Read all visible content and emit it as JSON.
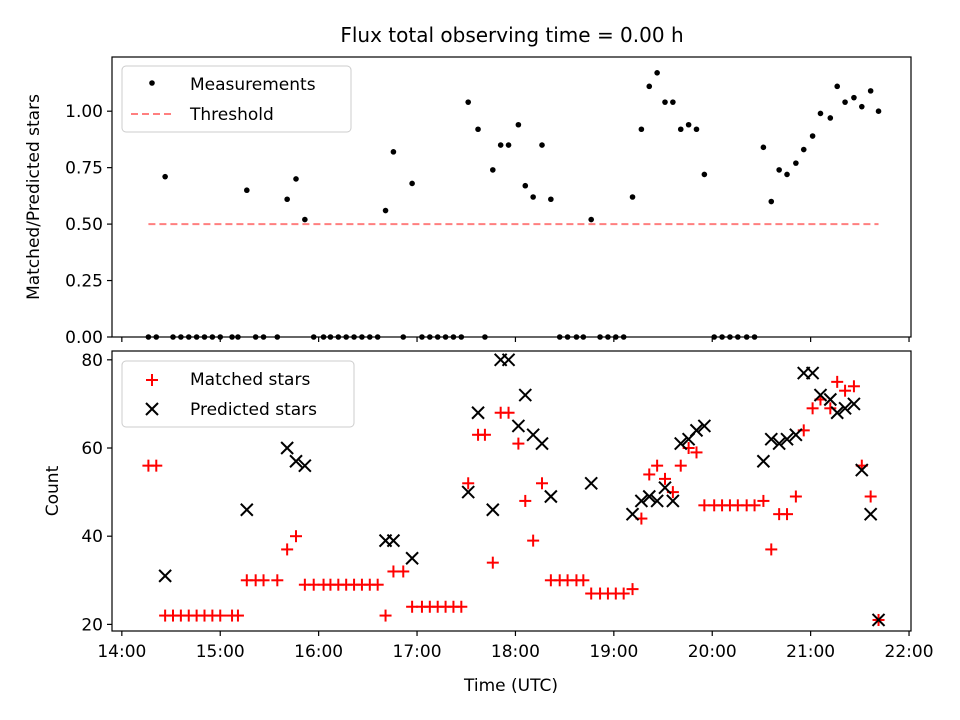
{
  "title": "Flux total observing time = 0.00 h",
  "colors": {
    "threshold": "#ff7f7f",
    "matched": "#ff0000",
    "predicted": "#000000",
    "measurement": "#000000"
  },
  "chart_data": [
    {
      "type": "scatter",
      "ylabel": "Matched/Predicted stars",
      "xlabel": "",
      "xlim": [
        13.9,
        22.02
      ],
      "ylim": [
        0,
        1.24
      ],
      "yticks": [
        "0.00",
        "0.25",
        "0.50",
        "0.75",
        "1.00"
      ],
      "legend": {
        "placement": "top-left",
        "entries": [
          "Measurements",
          "Threshold"
        ]
      },
      "series": [
        {
          "name": "Measurements",
          "x": [
            14.27,
            14.35,
            14.44,
            14.52,
            14.6,
            14.68,
            14.76,
            14.84,
            14.92,
            15.0,
            15.12,
            15.18,
            15.27,
            15.36,
            15.44,
            15.58,
            15.68,
            15.77,
            15.86,
            15.95,
            16.05,
            16.12,
            16.2,
            16.28,
            16.36,
            16.44,
            16.52,
            16.6,
            16.68,
            16.76,
            16.86,
            16.95,
            17.05,
            17.13,
            17.21,
            17.29,
            17.37,
            17.45,
            17.52,
            17.62,
            17.69,
            17.77,
            17.85,
            17.93,
            18.03,
            18.1,
            18.18,
            18.27,
            18.36,
            18.45,
            18.53,
            18.62,
            18.69,
            18.77,
            18.86,
            18.94,
            19.02,
            19.1,
            19.19,
            19.28,
            19.36,
            19.44,
            19.52,
            19.6,
            19.68,
            19.76,
            19.84,
            19.92,
            20.02,
            20.1,
            20.18,
            20.26,
            20.35,
            20.43,
            20.52,
            20.6,
            20.68,
            20.76,
            20.85,
            20.93,
            21.02,
            21.1,
            21.2,
            21.27,
            21.35,
            21.44,
            21.52,
            21.61,
            21.69
          ],
          "y": [
            0.0,
            0.0,
            0.71,
            0.0,
            0.0,
            0.0,
            0.0,
            0.0,
            0.0,
            0.0,
            0.0,
            0.0,
            0.65,
            0.0,
            0.0,
            0.0,
            0.61,
            0.7,
            0.52,
            0.0,
            0.0,
            0.0,
            0.0,
            0.0,
            0.0,
            0.0,
            0.0,
            0.0,
            0.56,
            0.82,
            0.0,
            0.68,
            0.0,
            0.0,
            0.0,
            0.0,
            0.0,
            0.0,
            1.04,
            0.92,
            0.0,
            0.74,
            0.85,
            0.85,
            0.94,
            0.67,
            0.62,
            0.85,
            0.61,
            0.0,
            0.0,
            0.0,
            0.0,
            0.52,
            0.0,
            0.0,
            0.0,
            0.0,
            0.62,
            0.92,
            1.11,
            1.17,
            1.04,
            1.04,
            0.92,
            0.94,
            0.92,
            0.72,
            0.0,
            0.0,
            0.0,
            0.0,
            0.0,
            0.0,
            0.84,
            0.6,
            0.74,
            0.72,
            0.77,
            0.83,
            0.89,
            0.99,
            0.97,
            1.11,
            1.04,
            1.06,
            1.02,
            1.09,
            1.0
          ]
        },
        {
          "name": "Threshold",
          "x": [
            14.27,
            21.69
          ],
          "y": [
            0.5,
            0.5
          ]
        }
      ]
    },
    {
      "type": "scatter",
      "ylabel": "Count",
      "xlabel": "Time (UTC)",
      "xlim": [
        13.9,
        22.02
      ],
      "ylim": [
        18.5,
        82
      ],
      "xticks": [
        "14:00",
        "15:00",
        "16:00",
        "17:00",
        "18:00",
        "19:00",
        "20:00",
        "21:00",
        "22:00"
      ],
      "yticks": [
        "20",
        "40",
        "60",
        "80"
      ],
      "legend": {
        "placement": "top-left",
        "entries": [
          "Matched stars",
          "Predicted stars"
        ]
      },
      "series": [
        {
          "name": "Matched stars",
          "x": [
            14.27,
            14.35,
            14.44,
            14.52,
            14.6,
            14.68,
            14.76,
            14.84,
            14.92,
            15.0,
            15.12,
            15.18,
            15.27,
            15.36,
            15.44,
            15.58,
            15.68,
            15.77,
            15.86,
            15.95,
            16.05,
            16.12,
            16.2,
            16.28,
            16.36,
            16.44,
            16.52,
            16.6,
            16.68,
            16.76,
            16.86,
            16.95,
            17.05,
            17.13,
            17.21,
            17.29,
            17.37,
            17.45,
            17.52,
            17.62,
            17.69,
            17.77,
            17.85,
            17.93,
            18.03,
            18.1,
            18.18,
            18.27,
            18.36,
            18.45,
            18.53,
            18.62,
            18.69,
            18.77,
            18.86,
            18.94,
            19.02,
            19.1,
            19.19,
            19.28,
            19.36,
            19.44,
            19.52,
            19.6,
            19.68,
            19.76,
            19.84,
            19.92,
            20.02,
            20.1,
            20.18,
            20.26,
            20.35,
            20.43,
            20.52,
            20.6,
            20.68,
            20.76,
            20.85,
            20.93,
            21.02,
            21.1,
            21.2,
            21.27,
            21.35,
            21.44,
            21.52,
            21.61,
            21.69
          ],
          "y": [
            56,
            56,
            22,
            22,
            22,
            22,
            22,
            22,
            22,
            22,
            22,
            22,
            30,
            30,
            30,
            30,
            37,
            40,
            29,
            29,
            29,
            29,
            29,
            29,
            29,
            29,
            29,
            29,
            22,
            32,
            32,
            24,
            24,
            24,
            24,
            24,
            24,
            24,
            52,
            63,
            63,
            34,
            68,
            68,
            61,
            48,
            39,
            52,
            30,
            30,
            30,
            30,
            30,
            27,
            27,
            27,
            27,
            27,
            28,
            44,
            54,
            56,
            53,
            50,
            56,
            60,
            59,
            47,
            47,
            47,
            47,
            47,
            47,
            47,
            48,
            37,
            45,
            45,
            49,
            64,
            69,
            71,
            69,
            75,
            73,
            74,
            56,
            49,
            21
          ]
        },
        {
          "name": "Predicted stars",
          "x": [
            14.44,
            15.27,
            15.68,
            15.77,
            15.86,
            16.68,
            16.76,
            16.95,
            17.52,
            17.62,
            17.77,
            17.85,
            17.93,
            18.03,
            18.1,
            18.18,
            18.27,
            18.36,
            18.77,
            19.19,
            19.28,
            19.36,
            19.44,
            19.52,
            19.6,
            19.68,
            19.76,
            19.84,
            19.92,
            20.52,
            20.6,
            20.68,
            20.76,
            20.85,
            20.93,
            21.02,
            21.1,
            21.2,
            21.27,
            21.35,
            21.44,
            21.52,
            21.61,
            21.69
          ],
          "y": [
            31,
            46,
            60,
            57,
            56,
            39,
            39,
            35,
            50,
            68,
            46,
            80,
            80,
            65,
            72,
            63,
            61,
            49,
            52,
            45,
            48,
            49,
            48,
            51,
            48,
            61,
            62,
            64,
            65,
            57,
            62,
            61,
            62,
            63,
            77,
            77,
            72,
            71,
            68,
            69,
            70,
            55,
            45,
            21
          ]
        }
      ]
    }
  ]
}
